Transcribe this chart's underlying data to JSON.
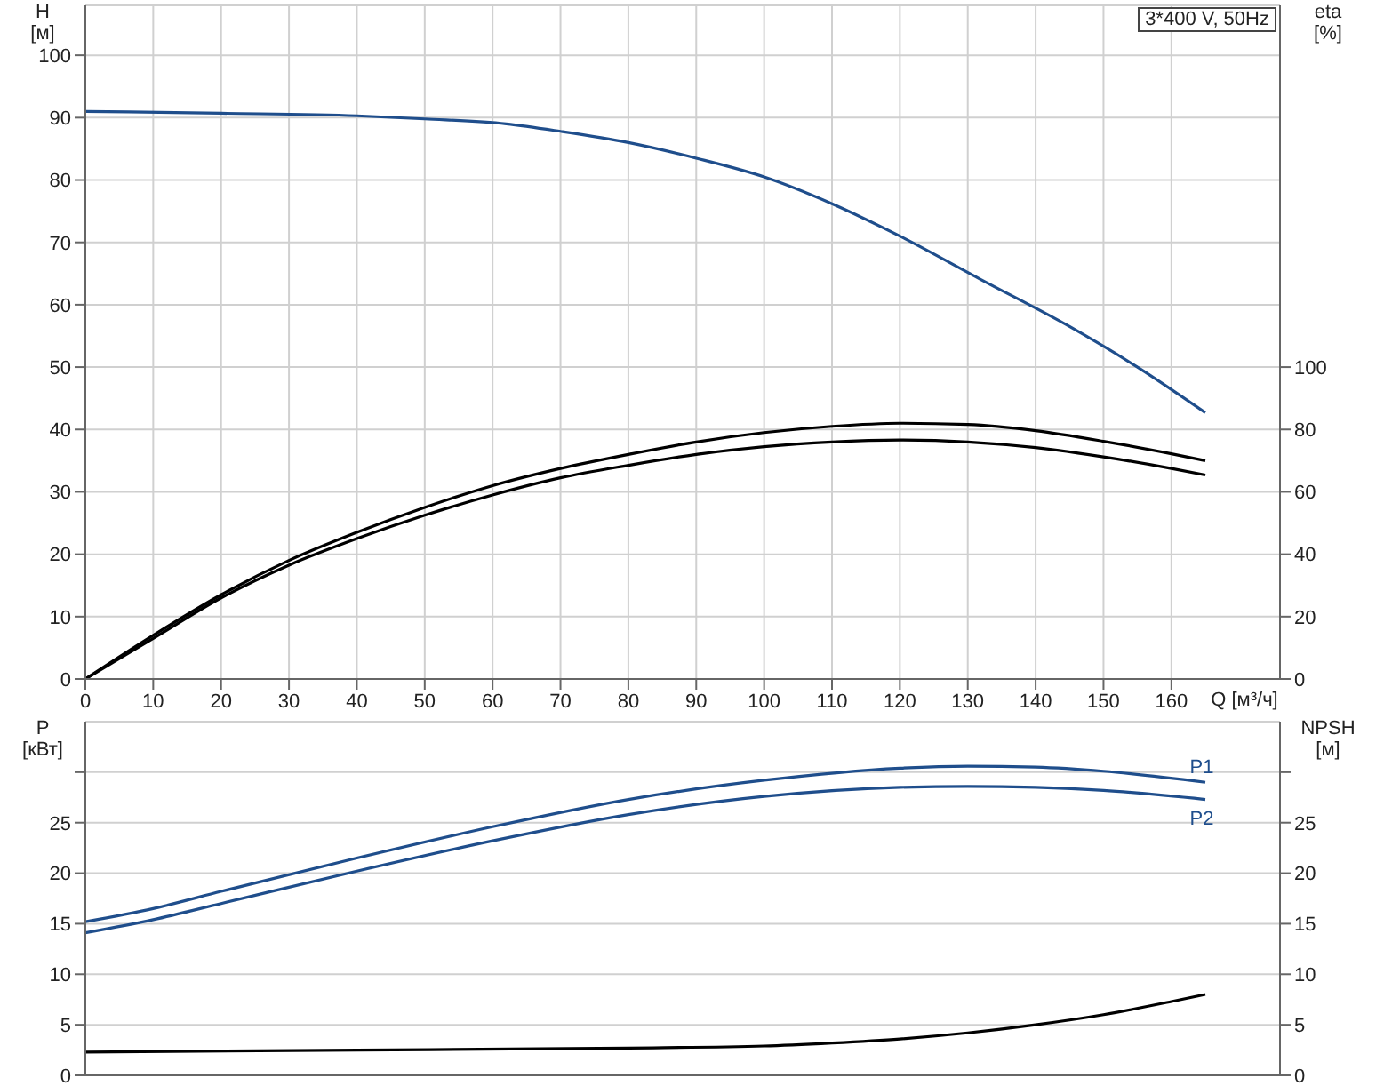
{
  "chart_data": [
    {
      "type": "line",
      "title": "3*400 V, 50Hz",
      "xlabel": "Q [м³/ч]",
      "ylabel": "H [м]",
      "y2label": "eta [%]",
      "xlim": [
        0,
        176
      ],
      "xticks": [
        0,
        10,
        20,
        30,
        40,
        50,
        60,
        70,
        80,
        90,
        100,
        110,
        120,
        130,
        140,
        150,
        160
      ],
      "ylim": [
        0,
        108
      ],
      "yticks": [
        0,
        10,
        20,
        30,
        40,
        50,
        60,
        70,
        80,
        90,
        100
      ],
      "y2lim": [
        0,
        216
      ],
      "y2ticks": [
        0,
        20,
        40,
        60,
        80,
        100
      ],
      "grid": true,
      "marker": "none",
      "line_style": "solid",
      "series": [
        {
          "color": "#1f4e8c",
          "x": [
            0,
            20,
            40,
            50,
            62,
            70,
            80,
            90,
            100,
            110,
            120,
            132,
            145,
            155,
            165
          ],
          "values": [
            91,
            90.7,
            90.3,
            89.8,
            89,
            87.8,
            86,
            83.5,
            80.5,
            76.2,
            71,
            64,
            56.5,
            50,
            42.7
          ]
        },
        {
          "color": "#000000",
          "axis": "y2",
          "x": [
            0,
            10,
            20,
            30,
            40,
            50,
            60,
            70,
            80,
            90,
            100,
            110,
            120,
            130,
            140,
            150,
            160,
            165
          ],
          "values": [
            0,
            14,
            27,
            38,
            47,
            55,
            62,
            67.5,
            72,
            76,
            79,
            81,
            82,
            81.6,
            79.6,
            76.2,
            72.2,
            70
          ]
        },
        {
          "color": "#000000",
          "axis": "y2",
          "x": [
            0,
            10,
            20,
            30,
            40,
            50,
            60,
            70,
            80,
            90,
            100,
            110,
            120,
            130,
            140,
            150,
            160,
            165
          ],
          "values": [
            0,
            13,
            26,
            36.5,
            45,
            52.5,
            59,
            64.5,
            68.5,
            72,
            74.5,
            76,
            76.6,
            76,
            74.2,
            71.2,
            67.5,
            65.4
          ]
        }
      ]
    },
    {
      "type": "line",
      "ylabel": "P [кВт]",
      "y2label": "NPSH [м]",
      "tick_labels": "y",
      "xlim": [
        0,
        176
      ],
      "xticks": [
        0,
        10,
        20,
        30,
        40,
        50,
        60,
        70,
        80,
        90,
        100,
        110,
        120,
        130,
        140,
        150,
        160
      ],
      "ylim": [
        0,
        35
      ],
      "yticks": [
        0,
        5,
        10,
        15,
        20,
        25,
        {
          "value": 30,
          "label": null
        }
      ],
      "y2lim": [
        0,
        35
      ],
      "y2ticks": [
        0,
        5,
        10,
        15,
        20,
        25,
        {
          "value": 30,
          "label": null
        }
      ],
      "grid": true,
      "marker": "none",
      "line_style": "solid",
      "series": [
        {
          "name": "P1",
          "color": "#1f4e8c",
          "x": [
            0,
            10,
            20,
            40,
            60,
            80,
            100,
            120,
            130,
            140,
            150,
            165
          ],
          "values": [
            15.2,
            16.5,
            18.2,
            21.5,
            24.6,
            27.3,
            29.2,
            30.4,
            30.6,
            30.5,
            30.1,
            29.0
          ]
        },
        {
          "name": "P2",
          "color": "#1f4e8c",
          "x": [
            0,
            10,
            20,
            40,
            60,
            80,
            100,
            120,
            130,
            140,
            150,
            165
          ],
          "values": [
            14.1,
            15.4,
            17.0,
            20.2,
            23.2,
            25.8,
            27.6,
            28.5,
            28.6,
            28.5,
            28.2,
            27.3
          ]
        },
        {
          "color": "#000000",
          "axis": "y2",
          "x": [
            0,
            40,
            80,
            100,
            110,
            120,
            130,
            140,
            150,
            160,
            165
          ],
          "values": [
            2.3,
            2.5,
            2.7,
            2.9,
            3.2,
            3.6,
            4.2,
            5.0,
            6.0,
            7.3,
            8.0
          ]
        }
      ]
    }
  ]
}
